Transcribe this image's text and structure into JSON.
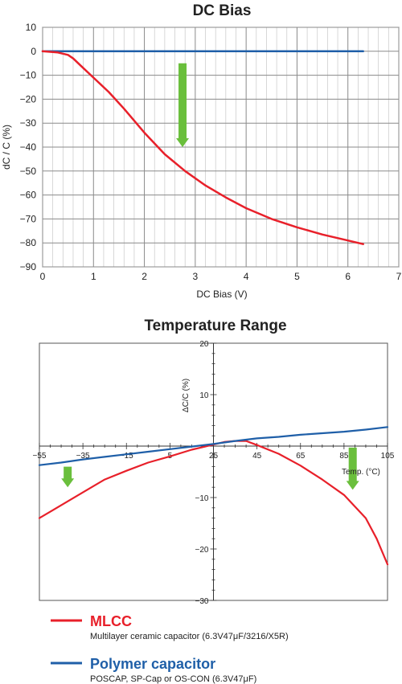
{
  "chart_data": [
    {
      "type": "line",
      "title": "DC Bias",
      "xlabel": "DC Bias (V)",
      "ylabel": "dC / C (%)",
      "xlim": [
        0,
        7
      ],
      "ylim": [
        -90,
        10
      ],
      "xticks": [
        0,
        1,
        2,
        3,
        4,
        5,
        6,
        7
      ],
      "yticks": [
        10,
        0,
        -10,
        -20,
        -30,
        -40,
        -50,
        -60,
        -70,
        -80,
        -90
      ],
      "grid": true,
      "series": [
        {
          "color": "#e8202a",
          "x": [
            0,
            0.3,
            0.5,
            0.6,
            0.8,
            1.0,
            1.3,
            1.6,
            2.0,
            2.4,
            2.8,
            3.2,
            3.6,
            4.0,
            4.5,
            5.0,
            5.5,
            6.0,
            6.3
          ],
          "y": [
            0,
            -0.5,
            -1.5,
            -3,
            -7,
            -11,
            -17,
            -24,
            -34,
            -43,
            -50,
            -56,
            -61,
            -65.5,
            -70,
            -73.5,
            -76.5,
            -79,
            -80.5
          ]
        },
        {
          "color": "#1f5fa8",
          "x": [
            0,
            6.3
          ],
          "y": [
            0,
            0
          ]
        }
      ],
      "annotations": [
        {
          "type": "arrow",
          "color": "#6abf3c",
          "x": 2.75,
          "y_from": -5,
          "y_to": -40,
          "direction": "down"
        }
      ]
    },
    {
      "type": "line",
      "title": "Temperature Range",
      "xlabel": "Temp. (°C)",
      "ylabel": "ΔC/C (%)",
      "xlim": [
        -55,
        105
      ],
      "ylim": [
        -30,
        20
      ],
      "xticks": [
        -55,
        -35,
        -15,
        5,
        25,
        45,
        65,
        85,
        105
      ],
      "yticks": [
        20,
        10,
        -10,
        -20,
        -30
      ],
      "grid": false,
      "series": [
        {
          "color": "#e8202a",
          "x": [
            -55,
            -45,
            -35,
            -25,
            -15,
            -5,
            5,
            15,
            25,
            30,
            35,
            40,
            45,
            55,
            65,
            75,
            85,
            95,
            100,
            105
          ],
          "y": [
            -14,
            -11.5,
            -9,
            -6.5,
            -4.8,
            -3.2,
            -2,
            -0.7,
            0.3,
            0.8,
            1.0,
            1.0,
            0.2,
            -1.5,
            -3.8,
            -6.5,
            -9.5,
            -14,
            -18,
            -23
          ]
        },
        {
          "color": "#1f5fa8",
          "x": [
            -55,
            -45,
            -35,
            -25,
            -15,
            -5,
            5,
            15,
            25,
            35,
            45,
            55,
            65,
            75,
            85,
            95,
            105
          ],
          "y": [
            -3.7,
            -3.2,
            -2.6,
            -2.1,
            -1.6,
            -1.1,
            -0.6,
            -0.1,
            0.4,
            1.0,
            1.5,
            1.8,
            2.2,
            2.5,
            2.8,
            3.2,
            3.7
          ]
        }
      ],
      "annotations": [
        {
          "type": "arrow",
          "color": "#6abf3c",
          "x": -42,
          "y_from": -4,
          "y_to": -8,
          "direction": "down"
        },
        {
          "type": "arrow",
          "color": "#6abf3c",
          "x": 89,
          "y_from": -0.3,
          "y_to": -8.5,
          "direction": "down"
        }
      ]
    }
  ],
  "legend": [
    {
      "name": "MLCC",
      "color": "#e8202a",
      "description": "Multilayer ceramic capacitor (6.3V47μF/3216/X5R)"
    },
    {
      "name": "Polymer capacitor",
      "color": "#1f5fa8",
      "description": "POSCAP, SP-Cap or OS-CON (6.3V47μF)"
    }
  ]
}
